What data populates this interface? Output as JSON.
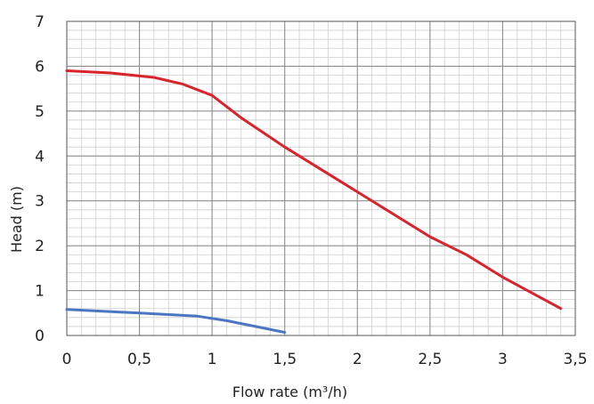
{
  "chart_data": {
    "type": "line",
    "title": "",
    "xlabel": "Flow rate (m³/h)",
    "ylabel": "Head (m)",
    "xlim": [
      0,
      3.5
    ],
    "ylim": [
      0,
      7
    ],
    "x_ticks": [
      "0",
      "0,5",
      "1",
      "1,5",
      "2",
      "2,5",
      "3",
      "3,5"
    ],
    "y_ticks": [
      "0",
      "1",
      "2",
      "3",
      "4",
      "5",
      "6",
      "7"
    ],
    "grid": true,
    "series": [
      {
        "color": "#d9232d",
        "x": [
          0,
          0.3,
          0.6,
          0.8,
          1.0,
          1.2,
          1.5,
          2.0,
          2.5,
          2.75,
          3.0,
          3.4
        ],
        "y": [
          5.9,
          5.85,
          5.75,
          5.6,
          5.35,
          4.85,
          4.2,
          3.2,
          2.2,
          1.8,
          1.3,
          0.6
        ]
      },
      {
        "color": "#4a76c2",
        "x": [
          0,
          0.5,
          0.9,
          1.1,
          1.3,
          1.5
        ],
        "y": [
          0.58,
          0.5,
          0.43,
          0.33,
          0.2,
          0.07
        ]
      }
    ]
  }
}
